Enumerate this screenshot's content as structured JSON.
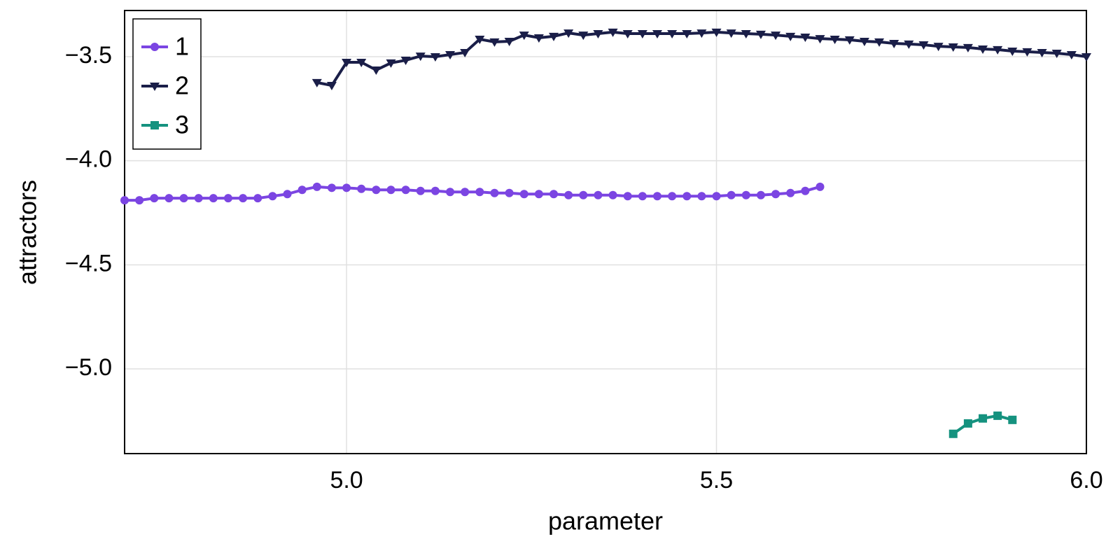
{
  "chart_data": {
    "type": "line",
    "xlabel": "parameter",
    "ylabel": "attractors",
    "xlim": [
      4.7,
      6.0
    ],
    "ylim": [
      -5.407,
      -3.278
    ],
    "xticks": [
      {
        "value": 5.0,
        "label": "5.0"
      },
      {
        "value": 5.5,
        "label": "5.5"
      },
      {
        "value": 6.0,
        "label": "6.0"
      }
    ],
    "yticks": [
      {
        "value": -3.5,
        "label": "−3.5"
      },
      {
        "value": -4.0,
        "label": "−4.0"
      },
      {
        "value": -4.5,
        "label": "−4.5"
      },
      {
        "value": -5.0,
        "label": "−5.0"
      }
    ],
    "grid": true,
    "legend": "upper left",
    "series": [
      {
        "name": "1",
        "color": "#7b45e2",
        "marker": "circle",
        "x": [
          4.7,
          4.72,
          4.74,
          4.76,
          4.78,
          4.8,
          4.82,
          4.84,
          4.86,
          4.88,
          4.9,
          4.92,
          4.94,
          4.96,
          4.98,
          5.0,
          5.02,
          5.04,
          5.06,
          5.08,
          5.1,
          5.12,
          5.14,
          5.16,
          5.18,
          5.2,
          5.22,
          5.24,
          5.26,
          5.28,
          5.3,
          5.32,
          5.34,
          5.36,
          5.38,
          5.4,
          5.42,
          5.44,
          5.46,
          5.48,
          5.5,
          5.52,
          5.54,
          5.56,
          5.58,
          5.6,
          5.62,
          5.64
        ],
        "values": [
          -4.19,
          -4.19,
          -4.18,
          -4.18,
          -4.18,
          -4.18,
          -4.18,
          -4.18,
          -4.18,
          -4.18,
          -4.17,
          -4.16,
          -4.14,
          -4.125,
          -4.13,
          -4.13,
          -4.135,
          -4.14,
          -4.14,
          -4.14,
          -4.145,
          -4.145,
          -4.15,
          -4.15,
          -4.15,
          -4.155,
          -4.155,
          -4.16,
          -4.16,
          -4.16,
          -4.165,
          -4.165,
          -4.165,
          -4.165,
          -4.17,
          -4.17,
          -4.17,
          -4.17,
          -4.17,
          -4.17,
          -4.17,
          -4.165,
          -4.165,
          -4.165,
          -4.16,
          -4.155,
          -4.145,
          -4.125
        ]
      },
      {
        "name": "2",
        "color": "#1a1e48",
        "marker": "triangle-down",
        "x": [
          4.96,
          4.98,
          5.0,
          5.02,
          5.04,
          5.06,
          5.08,
          5.1,
          5.12,
          5.14,
          5.16,
          5.18,
          5.2,
          5.22,
          5.24,
          5.26,
          5.28,
          5.3,
          5.32,
          5.34,
          5.36,
          5.38,
          5.4,
          5.42,
          5.44,
          5.46,
          5.48,
          5.5,
          5.52,
          5.54,
          5.56,
          5.58,
          5.6,
          5.62,
          5.64,
          5.66,
          5.68,
          5.7,
          5.72,
          5.74,
          5.76,
          5.78,
          5.8,
          5.82,
          5.84,
          5.86,
          5.88,
          5.9,
          5.92,
          5.94,
          5.96,
          5.98,
          6.0
        ],
        "values": [
          -3.624,
          -3.638,
          -3.527,
          -3.527,
          -3.564,
          -3.53,
          -3.517,
          -3.497,
          -3.5,
          -3.49,
          -3.48,
          -3.416,
          -3.429,
          -3.426,
          -3.396,
          -3.409,
          -3.402,
          -3.386,
          -3.396,
          -3.389,
          -3.382,
          -3.389,
          -3.389,
          -3.389,
          -3.389,
          -3.389,
          -3.386,
          -3.382,
          -3.386,
          -3.389,
          -3.392,
          -3.396,
          -3.402,
          -3.406,
          -3.413,
          -3.416,
          -3.419,
          -3.426,
          -3.429,
          -3.436,
          -3.439,
          -3.443,
          -3.45,
          -3.453,
          -3.456,
          -3.463,
          -3.466,
          -3.473,
          -3.476,
          -3.48,
          -3.483,
          -3.49,
          -3.5
        ]
      },
      {
        "name": "3",
        "color": "#15927f",
        "marker": "square",
        "x": [
          5.82,
          5.84,
          5.86,
          5.88,
          5.9
        ],
        "values": [
          -5.312,
          -5.262,
          -5.238,
          -5.225,
          -5.245
        ]
      }
    ]
  }
}
